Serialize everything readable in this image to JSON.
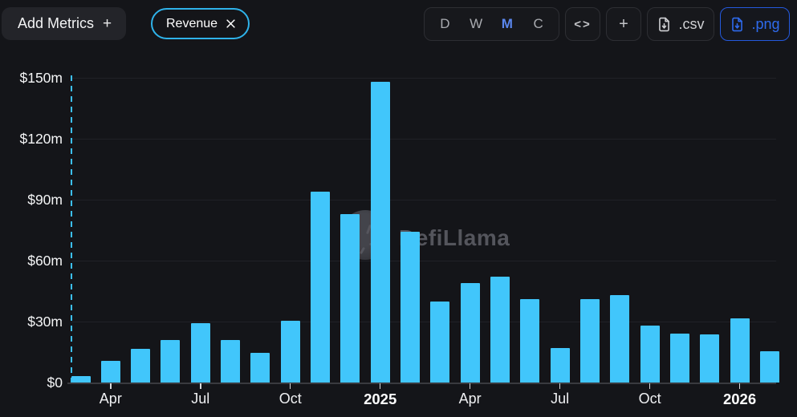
{
  "toolbar": {
    "add_metrics": {
      "label": "Add Metrics",
      "plus": "+"
    },
    "metric_pill": {
      "label": "Revenue"
    },
    "intervals": [
      {
        "label": "D",
        "active": false
      },
      {
        "label": "W",
        "active": false
      },
      {
        "label": "M",
        "active": true
      },
      {
        "label": "C",
        "active": false
      }
    ],
    "embed_icon": "<>",
    "plus_label": "+",
    "csv_label": ".csv",
    "png_label": ".png"
  },
  "watermark": {
    "text": "DefiLlama"
  },
  "colors": {
    "background": "#141519",
    "bar": "#41c6fb",
    "pill_border": "#2fb3ea",
    "interval_active": "#5b87ee",
    "png_accent": "#2e6bee"
  },
  "chart_data": {
    "type": "bar",
    "title": "Revenue",
    "unit": "USD millions",
    "xlabel": "",
    "ylabel": "",
    "ylim": [
      0,
      150
    ],
    "grid": true,
    "legend": "none",
    "bar_color": "#41c6fb",
    "categories": [
      "Mar 2024",
      "Apr 2024",
      "May 2024",
      "Jun 2024",
      "Jul 2024",
      "Aug 2024",
      "Sep 2024",
      "Oct 2024",
      "Nov 2024",
      "Dec 2024",
      "Jan 2025",
      "Feb 2025",
      "Mar 2025",
      "Apr 2025",
      "May 2025",
      "Jun 2025",
      "Jul 2025",
      "Aug 2025",
      "Sep 2025",
      "Oct 2025",
      "Nov 2025",
      "Dec 2025",
      "Jan 2026",
      "Feb 2026"
    ],
    "values": [
      3,
      10.5,
      16.5,
      21,
      29,
      21,
      14.5,
      30.5,
      94,
      83,
      148,
      74,
      40,
      49,
      52,
      41,
      17,
      41,
      43,
      28,
      24,
      23.5,
      31.5,
      15.5
    ],
    "ytick_labels": [
      "$0",
      "$30m",
      "$60m",
      "$90m",
      "$120m",
      "$150m"
    ],
    "xticks": [
      {
        "index": 1,
        "label": "Apr",
        "bold": false
      },
      {
        "index": 4,
        "label": "Jul",
        "bold": false
      },
      {
        "index": 7,
        "label": "Oct",
        "bold": false
      },
      {
        "index": 10,
        "label": "2025",
        "bold": true
      },
      {
        "index": 13,
        "label": "Apr",
        "bold": false
      },
      {
        "index": 16,
        "label": "Jul",
        "bold": false
      },
      {
        "index": 19,
        "label": "Oct",
        "bold": false
      },
      {
        "index": 22,
        "label": "2026",
        "bold": true
      }
    ]
  }
}
